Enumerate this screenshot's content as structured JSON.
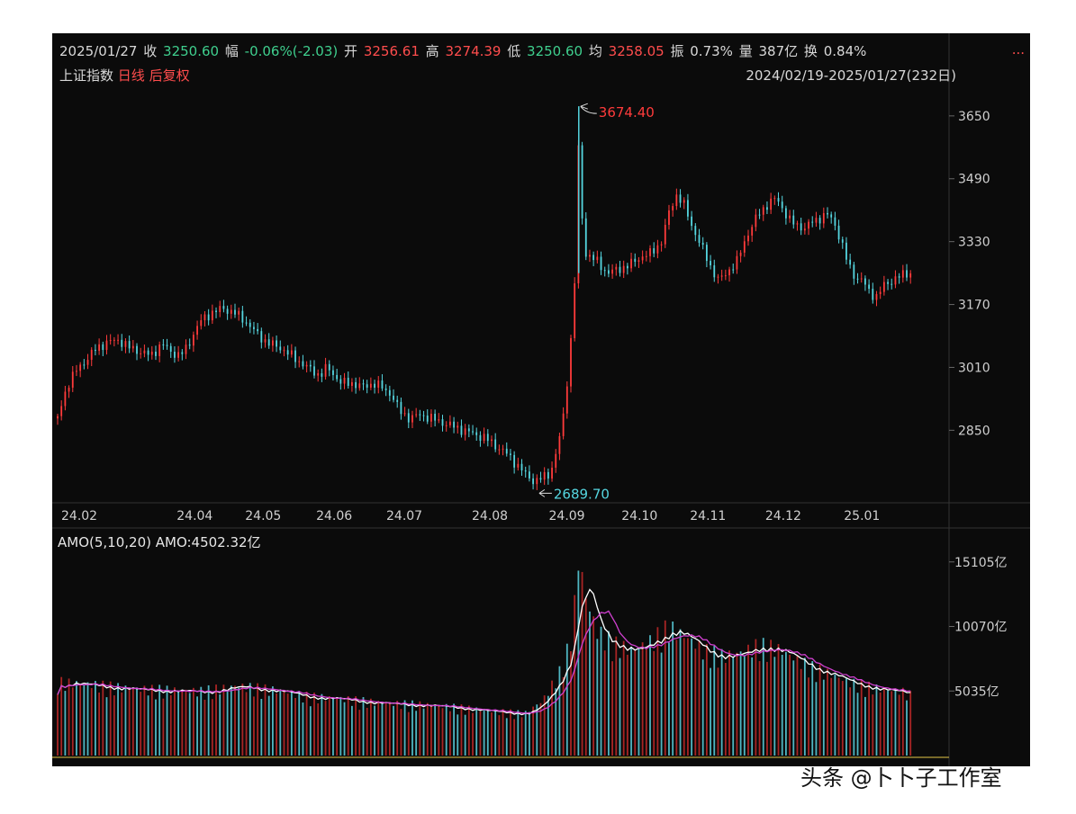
{
  "header": {
    "date": "2025/01/27",
    "close_label": "收",
    "close": "3250.60",
    "change_label": "幅",
    "change": "-0.06%(-2.03)",
    "open_label": "开",
    "open": "3256.61",
    "high_label": "高",
    "high": "3274.39",
    "low_label": "低",
    "low": "3250.60",
    "avg_label": "均",
    "avg": "3258.05",
    "amp_label": "振",
    "amp": "0.73%",
    "vol_label": "量",
    "vol": "387亿",
    "turn_label": "换",
    "turn": "0.84%",
    "more": "..."
  },
  "subheader": {
    "index_name": "上证指数",
    "period": "日线",
    "adjust": "后复权",
    "range": "2024/02/19-2025/01/27(232日)"
  },
  "amo_label": "AMO(5,10,20)",
  "amo_value": "AMO:4502.32亿",
  "watermark_text": "头条 @卜卜子工作室",
  "colors": {
    "up": "#ff3b3b",
    "down": "#55d6e0",
    "ma5": "#ffffff",
    "ma10": "#d040d0",
    "bg": "#0b0b0b"
  },
  "chart_data": [
    {
      "type": "candlestick",
      "title": "上证指数 日线 后复权",
      "x_ticks": [
        "24.02",
        "24.04",
        "24.05",
        "24.06",
        "24.07",
        "24.08",
        "24.09",
        "24.10",
        "24.11",
        "24.12",
        "25.01"
      ],
      "y_ticks": [
        "3650",
        "3490",
        "3330",
        "3170",
        "3010",
        "2850"
      ],
      "ylim": [
        2670,
        3700
      ],
      "annotations": [
        {
          "text": "3674.40",
          "value": 3674.4
        },
        {
          "text": "2689.70",
          "value": 2689.7
        }
      ],
      "close_path": [
        [
          0,
          2880
        ],
        [
          5,
          2960
        ],
        [
          10,
          3000
        ],
        [
          16,
          3030
        ],
        [
          22,
          3060
        ],
        [
          28,
          3075
        ],
        [
          34,
          3080
        ],
        [
          40,
          3060
        ],
        [
          46,
          3050
        ],
        [
          52,
          3040
        ],
        [
          58,
          3070
        ],
        [
          63,
          3050
        ],
        [
          68,
          3040
        ],
        [
          72,
          3060
        ],
        [
          76,
          3100
        ],
        [
          80,
          3130
        ],
        [
          86,
          3150
        ],
        [
          92,
          3160
        ],
        [
          98,
          3150
        ],
        [
          104,
          3130
        ],
        [
          108,
          3110
        ],
        [
          112,
          3090
        ],
        [
          118,
          3070
        ],
        [
          124,
          3060
        ],
        [
          130,
          3040
        ],
        [
          136,
          3020
        ],
        [
          142,
          3000
        ],
        [
          146,
          2990
        ],
        [
          150,
          3010
        ],
        [
          154,
          2990
        ],
        [
          158,
          2970
        ],
        [
          164,
          2970
        ],
        [
          170,
          2960
        ],
        [
          176,
          2970
        ],
        [
          180,
          2960
        ],
        [
          186,
          2940
        ],
        [
          190,
          2900
        ],
        [
          196,
          2880
        ],
        [
          202,
          2890
        ],
        [
          208,
          2880
        ],
        [
          214,
          2870
        ],
        [
          220,
          2860
        ],
        [
          226,
          2850
        ],
        [
          232,
          2840
        ],
        [
          238,
          2830
        ],
        [
          244,
          2810
        ],
        [
          250,
          2790
        ],
        [
          256,
          2760
        ],
        [
          262,
          2730
        ],
        [
          266,
          2720
        ],
        [
          270,
          2730
        ],
        [
          274,
          2740
        ],
        [
          278,
          2800
        ],
        [
          282,
          2900
        ],
        [
          286,
          3100
        ],
        [
          288,
          3250
        ],
        [
          290,
          3600
        ],
        [
          292,
          3380
        ],
        [
          294,
          3300
        ],
        [
          300,
          3280
        ],
        [
          306,
          3250
        ],
        [
          312,
          3260
        ],
        [
          318,
          3270
        ],
        [
          324,
          3290
        ],
        [
          330,
          3300
        ],
        [
          336,
          3330
        ],
        [
          340,
          3400
        ],
        [
          344,
          3450
        ],
        [
          348,
          3430
        ],
        [
          352,
          3380
        ],
        [
          356,
          3340
        ],
        [
          360,
          3300
        ],
        [
          364,
          3260
        ],
        [
          368,
          3230
        ],
        [
          372,
          3250
        ],
        [
          378,
          3280
        ],
        [
          384,
          3350
        ],
        [
          390,
          3400
        ],
        [
          396,
          3430
        ],
        [
          400,
          3440
        ],
        [
          404,
          3410
        ],
        [
          408,
          3380
        ],
        [
          412,
          3370
        ],
        [
          416,
          3365
        ],
        [
          420,
          3380
        ],
        [
          424,
          3390
        ],
        [
          428,
          3400
        ],
        [
          432,
          3380
        ],
        [
          436,
          3330
        ],
        [
          440,
          3270
        ],
        [
          444,
          3240
        ],
        [
          448,
          3230
        ],
        [
          452,
          3200
        ],
        [
          456,
          3190
        ],
        [
          460,
          3220
        ],
        [
          464,
          3230
        ],
        [
          468,
          3240
        ],
        [
          472,
          3250
        ],
        [
          476,
          3250
        ]
      ]
    },
    {
      "type": "bar",
      "title": "AMO(5,10,20)",
      "y_ticks": [
        "15105亿",
        "10070亿",
        "5035亿"
      ],
      "ylim": [
        0,
        16000
      ],
      "series": [
        {
          "name": "AMO",
          "values_path": [
            [
              0,
              5600
            ],
            [
              20,
              5400
            ],
            [
              40,
              5100
            ],
            [
              60,
              5000
            ],
            [
              80,
              4900
            ],
            [
              100,
              5300
            ],
            [
              120,
              5000
            ],
            [
              140,
              4500
            ],
            [
              160,
              4300
            ],
            [
              180,
              4000
            ],
            [
              200,
              3900
            ],
            [
              220,
              3700
            ],
            [
              240,
              3400
            ],
            [
              260,
              3200
            ],
            [
              270,
              4200
            ],
            [
              280,
              6500
            ],
            [
              286,
              9000
            ],
            [
              290,
              15105
            ],
            [
              294,
              12000
            ],
            [
              300,
              9500
            ],
            [
              310,
              8500
            ],
            [
              320,
              8000
            ],
            [
              330,
              8700
            ],
            [
              340,
              9800
            ],
            [
              350,
              9000
            ],
            [
              360,
              8000
            ],
            [
              370,
              7600
            ],
            [
              380,
              7800
            ],
            [
              390,
              8400
            ],
            [
              400,
              8200
            ],
            [
              410,
              7400
            ],
            [
              420,
              6700
            ],
            [
              430,
              6200
            ],
            [
              440,
              5600
            ],
            [
              450,
              5300
            ],
            [
              460,
              5000
            ],
            [
              470,
              4900
            ],
            [
              476,
              4502
            ]
          ]
        }
      ]
    }
  ]
}
